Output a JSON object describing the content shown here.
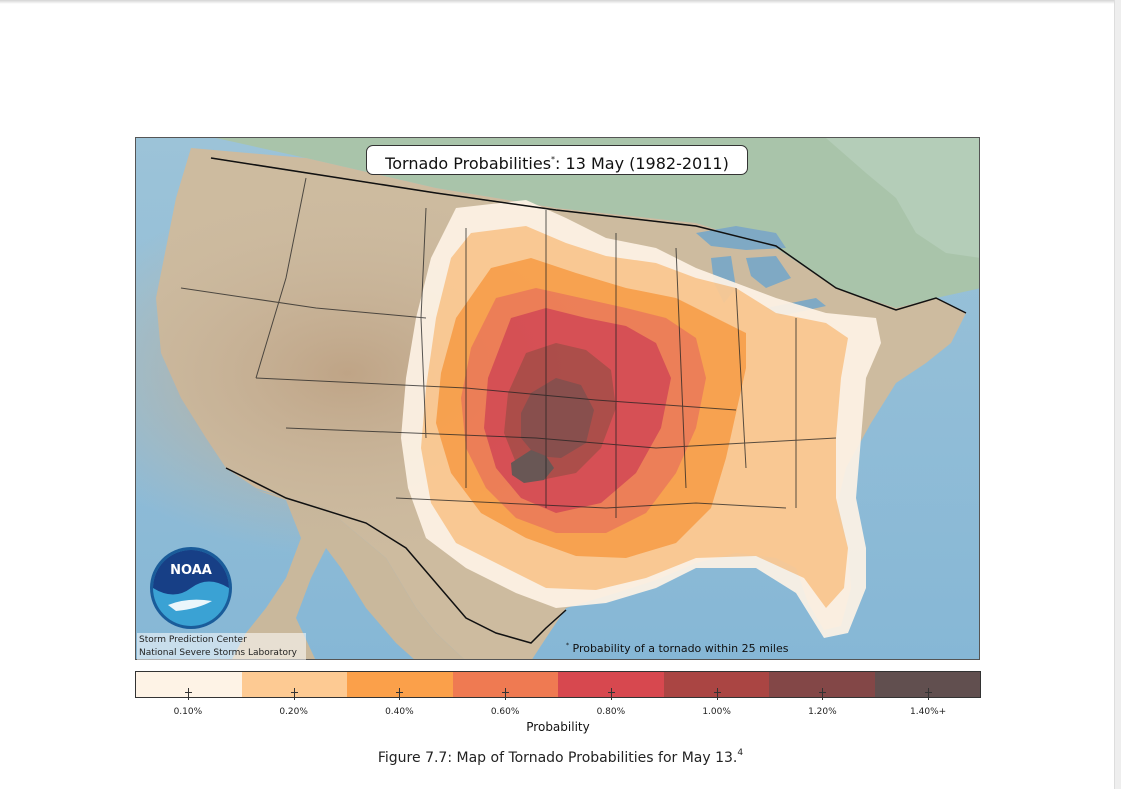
{
  "map": {
    "title": "Tornado Probabilities",
    "title_marker": "*",
    "title_rest": ": 13 May (1982-2011)",
    "footnote_marker": "*",
    "footnote": "Probability of a tornado within 25 miles",
    "credits": {
      "line1": "Storm Prediction Center",
      "line2": "National Severe Storms Laboratory"
    },
    "logo_text": "NOAA"
  },
  "legend": {
    "title": "Probability",
    "bins": [
      {
        "label": "0.10%",
        "color": "#fef3e6"
      },
      {
        "label": "0.20%",
        "color": "#fdca93"
      },
      {
        "label": "0.40%",
        "color": "#fba04a"
      },
      {
        "label": "0.60%",
        "color": "#ef7a52"
      },
      {
        "label": "0.80%",
        "color": "#d7484f"
      },
      {
        "label": "1.00%",
        "color": "#aa4543"
      },
      {
        "label": "1.20%",
        "color": "#834747"
      },
      {
        "label": "1.40%+",
        "color": "#614f4f"
      }
    ]
  },
  "caption": {
    "text": "Figure 7.7: Map of Tornado Probabilities for May 13.",
    "ref": "4"
  }
}
